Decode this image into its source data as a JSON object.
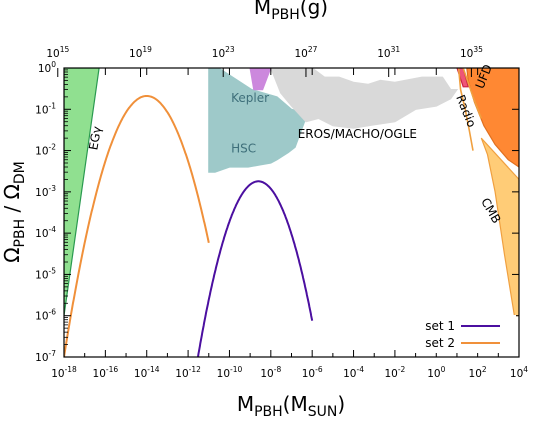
{
  "chart_data": {
    "type": "line",
    "x_axis": {
      "label_main": "M",
      "label_sub": "PBH",
      "label_paren_main": "M",
      "label_paren_sub": "SUN",
      "scale": "log",
      "range": [
        1e-18,
        10000.0
      ],
      "ticks": [
        {
          "base": "10",
          "exp": "-18",
          "value": 1e-18
        },
        {
          "base": "10",
          "exp": "-16",
          "value": 1e-16
        },
        {
          "base": "10",
          "exp": "-14",
          "value": 1e-14
        },
        {
          "base": "10",
          "exp": "-12",
          "value": 1e-12
        },
        {
          "base": "10",
          "exp": "-10",
          "value": 1e-10
        },
        {
          "base": "10",
          "exp": "-8",
          "value": 1e-08
        },
        {
          "base": "10",
          "exp": "-6",
          "value": 1e-06
        },
        {
          "base": "10",
          "exp": "-4",
          "value": 0.0001
        },
        {
          "base": "10",
          "exp": "-2",
          "value": 0.01
        },
        {
          "base": "10",
          "exp": "0",
          "value": 1
        },
        {
          "base": "10",
          "exp": "2",
          "value": 100
        },
        {
          "base": "10",
          "exp": "4",
          "value": 10000
        }
      ]
    },
    "x2_axis": {
      "label_main": "M",
      "label_sub": "PBH",
      "label_unit": "(g)",
      "scale": "log",
      "ticks": [
        {
          "base": "10",
          "exp": "15",
          "value_msun": 5e-19
        },
        {
          "base": "10",
          "exp": "19",
          "value_msun": 5e-15
        },
        {
          "base": "10",
          "exp": "23",
          "value_msun": 5e-11
        },
        {
          "base": "10",
          "exp": "27",
          "value_msun": 5e-07
        },
        {
          "base": "10",
          "exp": "31",
          "value_msun": 0.005
        },
        {
          "base": "10",
          "exp": "35",
          "value_msun": 50
        }
      ]
    },
    "y_axis": {
      "label_a_main": "Ω",
      "label_a_sub": "PBH",
      "label_sep": " / ",
      "label_b_main": "Ω",
      "label_b_sub": "DM",
      "scale": "log",
      "range": [
        1e-07,
        1
      ],
      "ticks": [
        {
          "base": "10",
          "exp": "0",
          "value": 1
        },
        {
          "base": "10",
          "exp": "-1",
          "value": 0.1
        },
        {
          "base": "10",
          "exp": "-2",
          "value": 0.01
        },
        {
          "base": "10",
          "exp": "-3",
          "value": 0.001
        },
        {
          "base": "10",
          "exp": "-4",
          "value": 0.0001
        },
        {
          "base": "10",
          "exp": "-5",
          "value": 1e-05
        },
        {
          "base": "10",
          "exp": "-6",
          "value": 1e-06
        },
        {
          "base": "10",
          "exp": "-7",
          "value": 1e-07
        }
      ]
    },
    "series": [
      {
        "name": "set 1",
        "color": "#4b0fa0",
        "shape": "lognormal",
        "peak_x": 2.5e-09,
        "peak_y": 0.0018,
        "x_range": [
          3e-12,
          1e-06
        ]
      },
      {
        "name": "set 2",
        "color": "#f0903a",
        "shape": "lognormal",
        "peak_x": 1e-14,
        "peak_y": 0.21,
        "x_range": [
          1e-18,
          1e-11
        ]
      }
    ],
    "constraints": [
      {
        "name": "EGγ",
        "fill": "#90e090",
        "stroke": "#2a9a50",
        "label_color": "#000000",
        "label_at": [
          4e-17,
          0.01
        ],
        "label_rotate": -80,
        "polygon": [
          [
            1e-18,
            1
          ],
          [
            5e-17,
            1
          ],
          [
            1e-18,
            1e-06
          ]
        ]
      },
      {
        "name": "HSC",
        "fill": "#9ec9c9",
        "stroke": "#9ec9c9",
        "label_color": "#3e6f7a",
        "label_at": [
          1.2e-10,
          0.009
        ],
        "label_rotate": 0,
        "polygon": [
          [
            1e-11,
            1
          ],
          [
            3e-11,
            1
          ],
          [
            1.2e-09,
            0.3
          ],
          [
            2e-08,
            0.2
          ],
          [
            1e-07,
            0.1
          ],
          [
            6e-07,
            0.08
          ],
          [
            1.5e-07,
            0.012
          ],
          [
            7e-08,
            0.009
          ],
          [
            2e-08,
            0.006
          ],
          [
            1e-08,
            0.005
          ],
          [
            3e-09,
            0.0045
          ],
          [
            8e-10,
            0.004
          ],
          [
            1e-10,
            0.004
          ],
          [
            2e-11,
            0.003
          ],
          [
            1e-11,
            0.003
          ]
        ]
      },
      {
        "name": "Kepler",
        "fill": "#cc88dd",
        "stroke": "#cc88dd",
        "label_color": "#3e6f7a",
        "label_at": [
          1.2e-10,
          0.15
        ],
        "label_rotate": 0,
        "polygon": [
          [
            1e-09,
            1
          ],
          [
            1e-08,
            1
          ],
          [
            4e-09,
            0.3
          ],
          [
            1.5e-09,
            0.3
          ]
        ]
      },
      {
        "name": "EROS/MACHO/OGLE",
        "fill": "#d9d9d9",
        "stroke": "#d9d9d9",
        "label_color": "#000000",
        "label_at": [
          2e-07,
          0.02
        ],
        "label_rotate": 0,
        "polygon": [
          [
            1e-08,
            1
          ],
          [
            1e-06,
            1
          ],
          [
            4e-06,
            0.6
          ],
          [
            2e-05,
            0.6
          ],
          [
            0.0001,
            0.45
          ],
          [
            0.0005,
            0.4
          ],
          [
            0.002,
            0.5
          ],
          [
            0.01,
            0.45
          ],
          [
            0.2,
            0.6
          ],
          [
            2,
            0.6
          ],
          [
            5,
            0.3
          ],
          [
            10,
            0.3
          ],
          [
            5,
            0.18
          ],
          [
            1,
            0.12
          ],
          [
            0.1,
            0.1
          ],
          [
            0.01,
            0.05
          ],
          [
            0.001,
            0.042
          ],
          [
            0.0001,
            0.035
          ],
          [
            1e-05,
            0.04
          ],
          [
            2e-06,
            0.06
          ],
          [
            5e-07,
            0.05
          ],
          [
            1e-07,
            0.12
          ],
          [
            3e-08,
            0.25
          ]
        ]
      },
      {
        "name": "Radio",
        "fill": "#ee5577",
        "stroke": "#cc2244",
        "label_color": "#000000",
        "label_at": [
          9,
          0.2
        ],
        "label_rotate": 68,
        "polygon": [
          [
            10,
            1
          ],
          [
            20,
            1
          ],
          [
            35,
            0.35
          ],
          [
            20,
            0.35
          ]
        ]
      },
      {
        "name": "UFD",
        "fill": "#ff8833",
        "stroke": "#e07020",
        "label_color": "#000000",
        "label_at": [
          180,
          0.3
        ],
        "label_rotate": -68,
        "polygon": [
          [
            30,
            1
          ],
          [
            10000.0,
            1
          ],
          [
            10000.0,
            0.004
          ],
          [
            3000,
            0.006
          ],
          [
            700,
            0.014
          ],
          [
            200,
            0.04
          ],
          [
            70,
            0.15
          ],
          [
            35,
            0.5
          ]
        ]
      },
      {
        "name": "CMB",
        "fill": "#ffcc77",
        "stroke": "#f0a040",
        "label_color": "#000000",
        "label_at": [
          140,
          0.0006
        ],
        "label_rotate": 60,
        "polygon": [
          [
            150,
            0.02
          ],
          [
            10000.0,
            0.002
          ],
          [
            10000.0,
            1e-06
          ],
          [
            6000,
            1e-06
          ],
          [
            2000,
            3e-05
          ],
          [
            700,
            0.001
          ],
          [
            300,
            0.008
          ]
        ]
      }
    ],
    "extra_lines": [
      {
        "color": "#f0a040",
        "points": [
          [
            12,
            1
          ],
          [
            15,
            0.3
          ],
          [
            25,
            0.1
          ],
          [
            40,
            0.03
          ],
          [
            60,
            0.01
          ]
        ]
      },
      {
        "color": "#f0a040",
        "points": [
          [
            20,
            1
          ],
          [
            60,
            0.2
          ],
          [
            150,
            0.06
          ]
        ]
      }
    ],
    "legend": {
      "position": "bottom-right"
    },
    "grid": false
  }
}
